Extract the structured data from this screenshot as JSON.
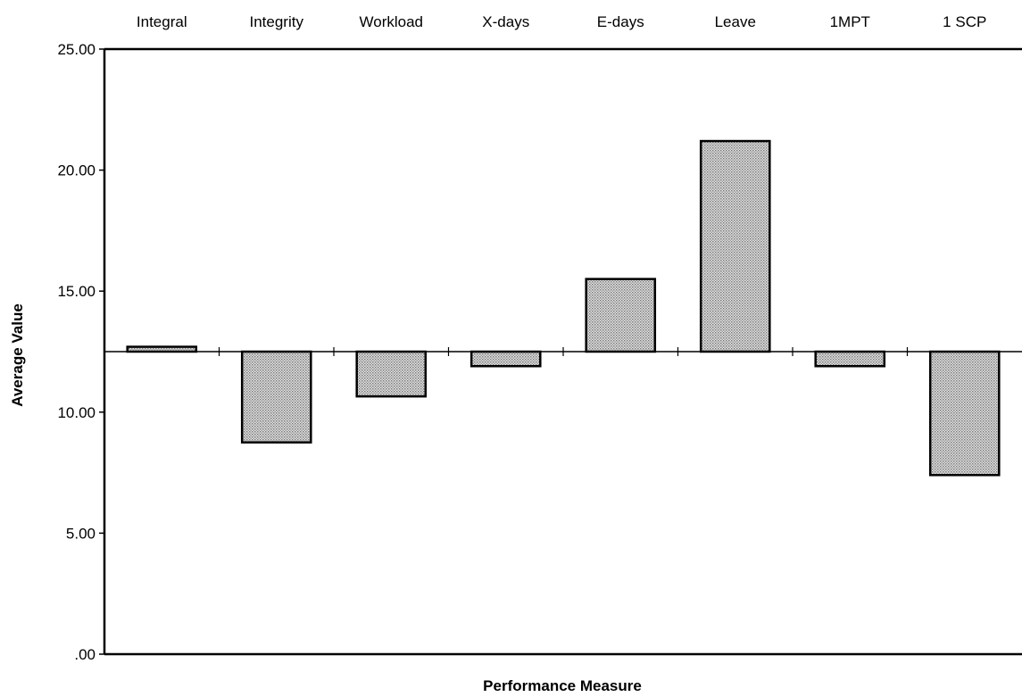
{
  "chart_data": {
    "type": "bar",
    "title": "",
    "xlabel": "Performance Measure",
    "ylabel": "Average Value",
    "categories": [
      "Integral",
      "Integrity",
      "Workload",
      "X-days",
      "E-days",
      "Leave",
      "1MPT",
      "1 SCP"
    ],
    "baseline": 12.5,
    "values": [
      12.7,
      8.75,
      10.65,
      11.9,
      15.5,
      21.2,
      11.9,
      7.4
    ],
    "ylim": [
      0,
      25
    ],
    "yticks": [
      0,
      5,
      10,
      15,
      20,
      25
    ],
    "ytick_labels": [
      ".00",
      "5.00",
      "10.00",
      "15.00",
      "20.00",
      "25.00"
    ],
    "category_label_position": "top",
    "grid": false,
    "bar_fill": "#c8c8c8",
    "bar_stroke": "#000000"
  }
}
